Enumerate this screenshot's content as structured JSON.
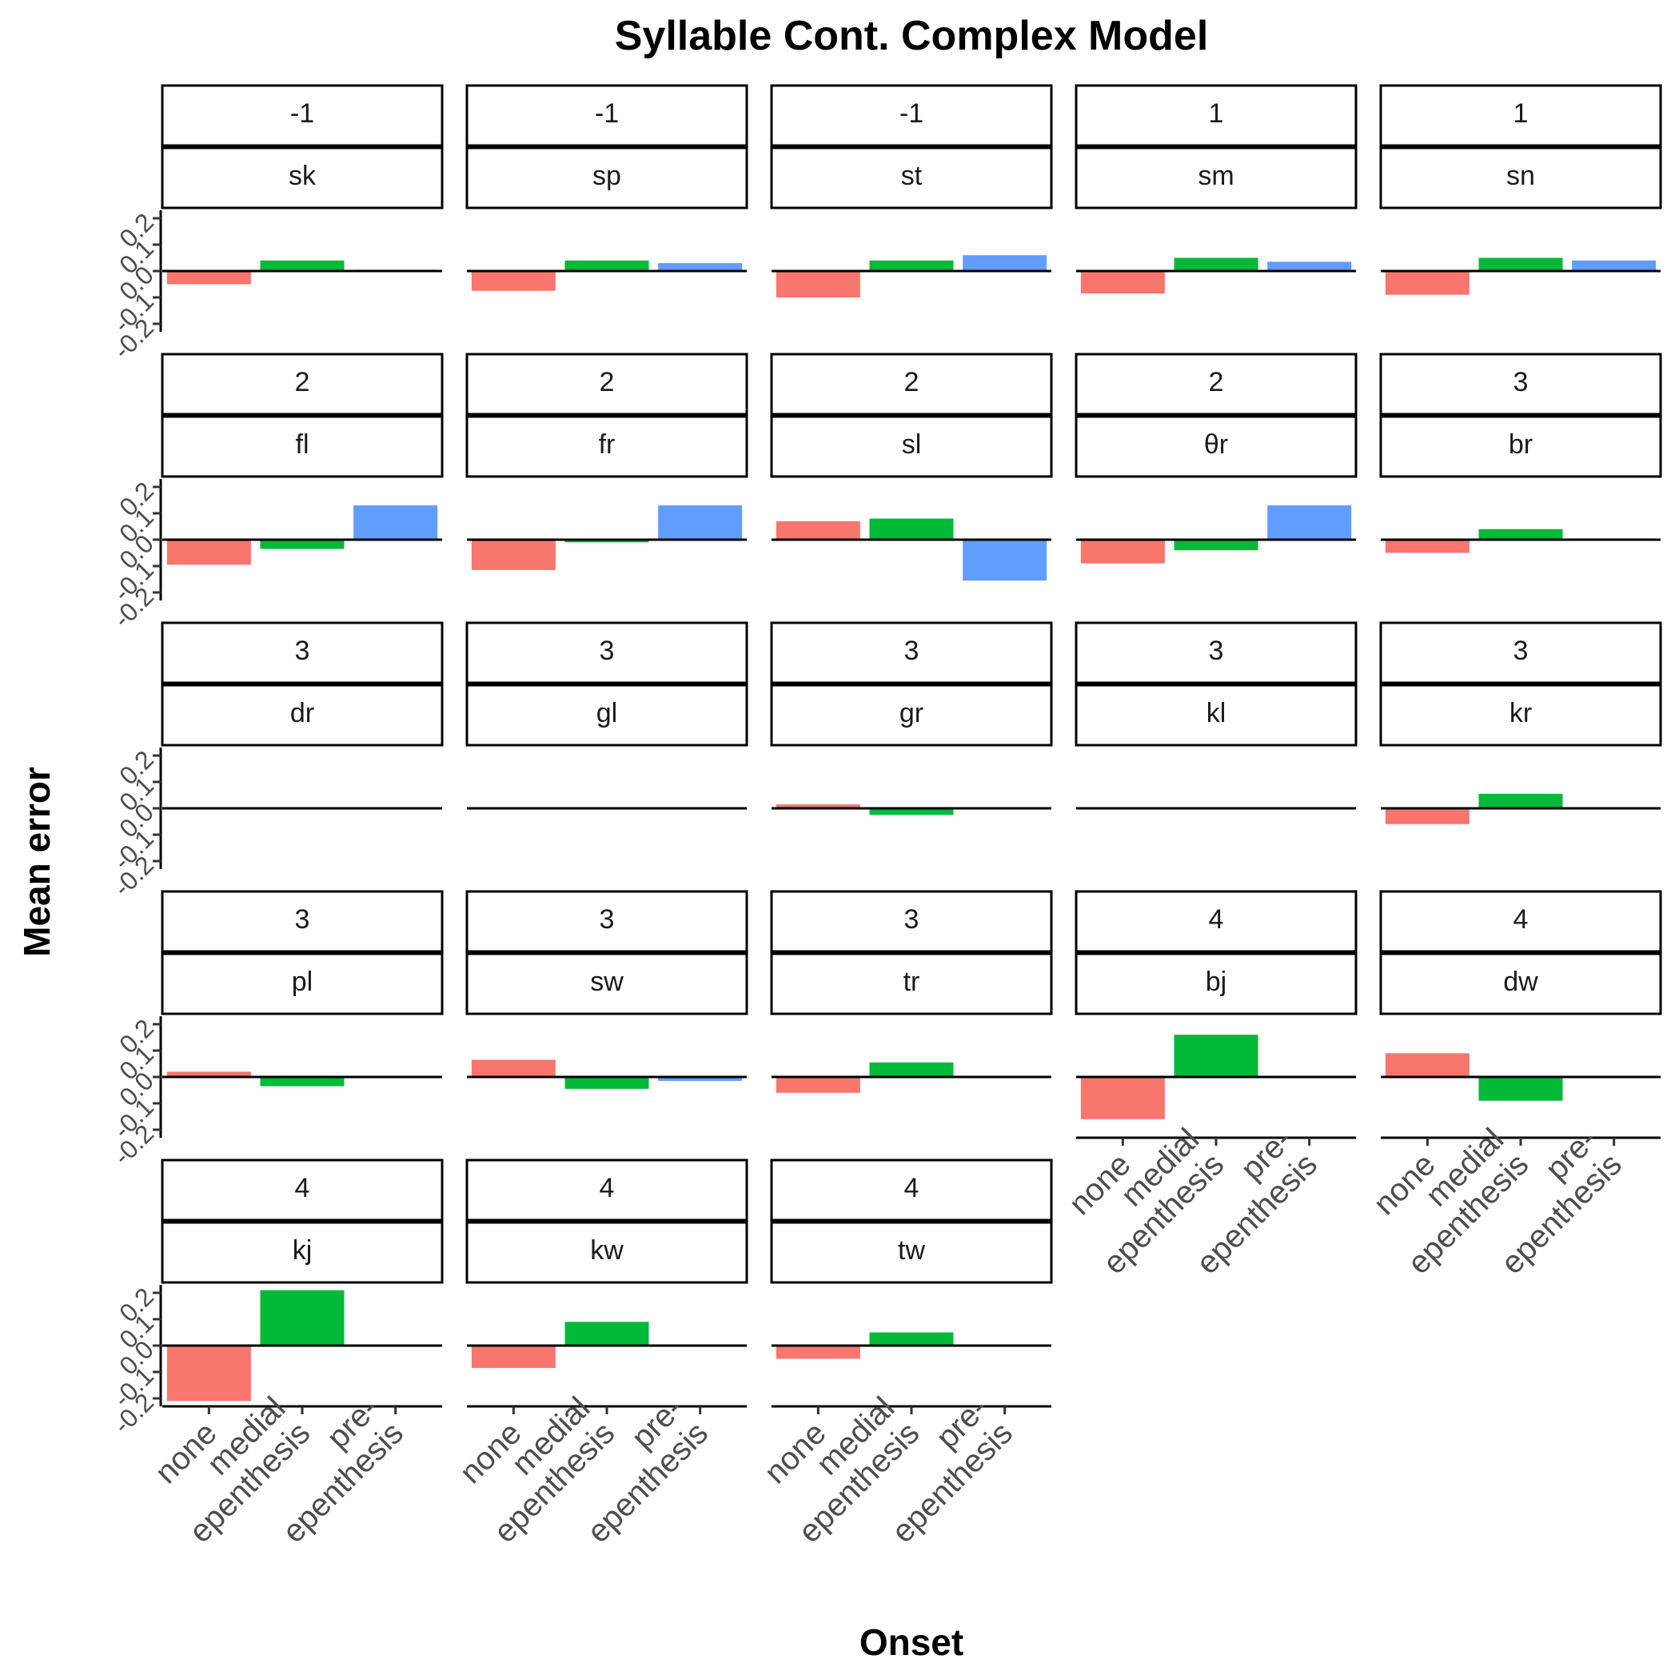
{
  "chart_data": {
    "type": "bar",
    "title": "Syllable Cont. Complex Model",
    "xlabel": "Onset",
    "ylabel": "Mean error",
    "categories": [
      "none",
      "medial epenthesis",
      "pre-epenthesis"
    ],
    "category_labels": [
      [
        "none"
      ],
      [
        "medial",
        "epenthesis"
      ],
      [
        "pre-",
        "epenthesis"
      ]
    ],
    "colors": [
      "#F8766D",
      "#00BA38",
      "#619CFF"
    ],
    "ylim": [
      -0.2,
      0.2
    ],
    "yticks": [
      "-0.2",
      "-0.1",
      "0.0",
      "0.1",
      "0.2"
    ],
    "panels": [
      {
        "level": "-1",
        "onset": "sk",
        "values": [
          -0.05,
          0.04,
          0.005
        ]
      },
      {
        "level": "-1",
        "onset": "sp",
        "values": [
          -0.075,
          0.04,
          0.03
        ]
      },
      {
        "level": "-1",
        "onset": "st",
        "values": [
          -0.1,
          0.04,
          0.06
        ]
      },
      {
        "level": "1",
        "onset": "sm",
        "values": [
          -0.085,
          0.05,
          0.035
        ]
      },
      {
        "level": "1",
        "onset": "sn",
        "values": [
          -0.09,
          0.05,
          0.04
        ]
      },
      {
        "level": "2",
        "onset": "fl",
        "values": [
          -0.095,
          -0.035,
          0.13
        ]
      },
      {
        "level": "2",
        "onset": "fr",
        "values": [
          -0.115,
          -0.01,
          0.13
        ]
      },
      {
        "level": "2",
        "onset": "sl",
        "values": [
          0.07,
          0.08,
          -0.155
        ]
      },
      {
        "level": "2",
        "onset": "θr",
        "values": [
          -0.09,
          -0.04,
          0.13
        ]
      },
      {
        "level": "3",
        "onset": "br",
        "values": [
          -0.05,
          0.04,
          0.005
        ]
      },
      {
        "level": "3",
        "onset": "dr",
        "values": [
          -0.004,
          0.0,
          0.004
        ]
      },
      {
        "level": "3",
        "onset": "gl",
        "values": [
          -0.004,
          0.0,
          0.004
        ]
      },
      {
        "level": "3",
        "onset": "gr",
        "values": [
          0.015,
          -0.025,
          0.004
        ]
      },
      {
        "level": "3",
        "onset": "kl",
        "values": [
          -0.004,
          0.0,
          0.004
        ]
      },
      {
        "level": "3",
        "onset": "kr",
        "values": [
          -0.06,
          0.055,
          0.004
        ]
      },
      {
        "level": "3",
        "onset": "pl",
        "values": [
          0.02,
          -0.035,
          0.004
        ]
      },
      {
        "level": "3",
        "onset": "sw",
        "values": [
          0.065,
          -0.045,
          -0.015
        ]
      },
      {
        "level": "3",
        "onset": "tr",
        "values": [
          -0.06,
          0.055,
          0.0
        ]
      },
      {
        "level": "4",
        "onset": "bj",
        "values": [
          -0.16,
          0.16,
          0.0
        ]
      },
      {
        "level": "4",
        "onset": "dw",
        "values": [
          0.09,
          -0.09,
          0.0
        ]
      },
      {
        "level": "4",
        "onset": "kj",
        "values": [
          -0.21,
          0.21,
          0.0
        ]
      },
      {
        "level": "4",
        "onset": "kw",
        "values": [
          -0.085,
          0.09,
          0.0
        ]
      },
      {
        "level": "4",
        "onset": "tw",
        "values": [
          -0.05,
          0.05,
          0.0
        ]
      }
    ]
  }
}
